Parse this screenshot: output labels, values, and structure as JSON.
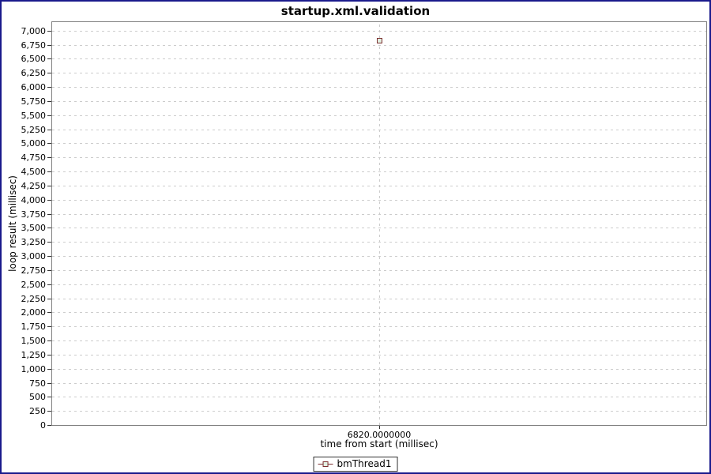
{
  "window": {
    "frame_border_color": "#1a1a8c",
    "background": "#ffffff"
  },
  "chart_data": {
    "type": "scatter",
    "title": "startup.xml.validation",
    "xlabel": "time from start (millisec)",
    "ylabel": "loop result (millisec)",
    "x_axis": {
      "tick_labels": [
        "6820.0000000"
      ],
      "tick_fracs": [
        0.5
      ]
    },
    "y_axis": {
      "min": 0,
      "display_max": 7150,
      "tick_min": 0,
      "tick_max": 7000,
      "tick_step": 250
    },
    "grid": "dashed",
    "series": [
      {
        "name": "bmThread1",
        "points": [
          {
            "x": 6820.0,
            "y": 6820
          }
        ],
        "marker_stroke": "#7c2f2f",
        "marker_fill": "#e2f0e2"
      }
    ],
    "legend": {
      "position": "bottom",
      "entries": [
        {
          "label": "bmThread1"
        }
      ]
    },
    "colors": {
      "gridline": "#cccccc",
      "plot_border": "#808080",
      "tick": "#333333",
      "text": "#000000"
    }
  }
}
